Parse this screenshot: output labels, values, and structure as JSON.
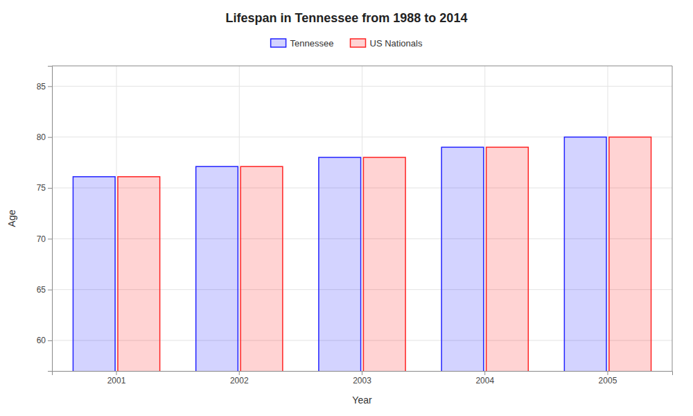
{
  "chart_data": {
    "type": "bar",
    "title": "Lifespan in Tennessee from 1988 to 2014",
    "x_label": "Year",
    "y_label": "Age",
    "categories": [
      "2001",
      "2002",
      "2003",
      "2004",
      "2005"
    ],
    "series": [
      {
        "name": "Tennessee",
        "color": "#2222ff",
        "values": [
          76.1,
          77.1,
          78.0,
          79.0,
          80.0
        ]
      },
      {
        "name": "US Nationals",
        "color": "#ff2222",
        "values": [
          76.1,
          77.1,
          78.0,
          79.0,
          80.0
        ]
      }
    ],
    "ylim": [
      57,
      87
    ],
    "yticks": [
      60,
      65,
      70,
      75,
      80,
      85
    ],
    "grid": true,
    "legend": "top"
  }
}
